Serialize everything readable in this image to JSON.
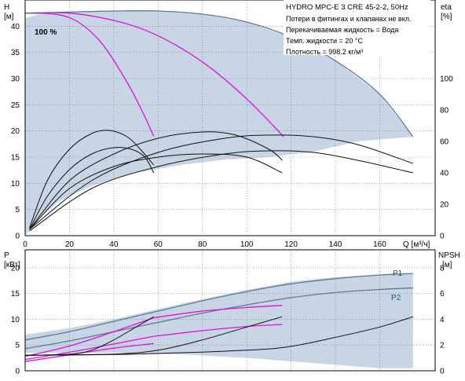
{
  "colors": {
    "envelope_fill": "#c8d5e4",
    "envelope_edge": "#5c7a9a",
    "curve_dark": "#111111",
    "curve_magenta": "#e010e0",
    "grid": "#777777",
    "axis": "#000000"
  },
  "chart_data": [
    {
      "type": "line",
      "title": "HYDRO MPC-E 3 CRE 45-2-2, 50Hz",
      "info_lines": [
        "Потери в фитингах и клапанах не вкл.",
        "Перекачиваемая жидкость = Вода",
        "Темп. жидкости = 20 °C",
        "Плотность = 998.2 кг/м³"
      ],
      "annotation": "100 %",
      "xlabel": "Q [м³/ч]",
      "ylabel_left": "H",
      "ylabel_left_unit": "[м]",
      "ylabel_right": "eta",
      "ylabel_right_unit": "[%]",
      "xlim": [
        0,
        185
      ],
      "ylim": [
        0,
        45
      ],
      "y2lim": [
        0,
        150
      ],
      "x_ticks": [
        0,
        20,
        40,
        60,
        80,
        100,
        120,
        140,
        160
      ],
      "y_ticks": [
        0,
        5,
        10,
        15,
        20,
        25,
        30,
        35,
        40
      ],
      "y2_ticks": [
        0,
        20,
        40,
        60,
        80,
        100
      ],
      "grid": true,
      "envelope": {
        "x": [
          0,
          5,
          20,
          40,
          60,
          80,
          100,
          120,
          140,
          160,
          175,
          150,
          130,
          110,
          90,
          70,
          50,
          30,
          15,
          5,
          2,
          0
        ],
        "y": [
          41.5,
          42.1,
          42.7,
          42.9,
          42.9,
          42.3,
          40.8,
          37.9,
          33.4,
          27.0,
          18.9,
          18.0,
          16.0,
          15.0,
          14.5,
          13.5,
          12.0,
          9.5,
          6.5,
          3.0,
          1.0,
          0
        ]
      },
      "series": [
        {
          "name": "head_1",
          "axis": "left",
          "color_key": "curve_magenta",
          "x": [
            0,
            15,
            25,
            35,
            45,
            52,
            58
          ],
          "y": [
            42.5,
            42.2,
            40.5,
            36.5,
            30.0,
            24.5,
            19.0
          ]
        },
        {
          "name": "head_2",
          "axis": "left",
          "color_key": "curve_magenta",
          "x": [
            0,
            20,
            40,
            55,
            70,
            85,
            100,
            112,
            116.5
          ],
          "y": [
            42.5,
            42.5,
            41.1,
            39.1,
            35.9,
            31.6,
            26.1,
            21.0,
            18.9
          ]
        },
        {
          "name": "head_3",
          "axis": "left",
          "color_key": "envelope_edge",
          "x": [
            0,
            20,
            40,
            60,
            80,
            100,
            120,
            140,
            160,
            175
          ],
          "y": [
            42.5,
            42.7,
            42.9,
            42.9,
            42.3,
            40.8,
            37.9,
            33.4,
            27.0,
            18.9
          ]
        },
        {
          "name": "eta_1",
          "axis": "right",
          "color_key": "curve_dark",
          "x": [
            2,
            10,
            20,
            30,
            38,
            46,
            52,
            58
          ],
          "y": [
            5,
            35,
            55,
            65,
            67,
            63,
            55,
            45
          ]
        },
        {
          "name": "eta_2",
          "axis": "right",
          "color_key": "curve_dark",
          "x": [
            2,
            10,
            20,
            30,
            40,
            48,
            54,
            58
          ],
          "y": [
            4,
            25,
            42,
            52,
            56,
            55,
            50,
            40
          ]
        },
        {
          "name": "eta_3",
          "axis": "right",
          "color_key": "curve_dark",
          "x": [
            2,
            20,
            40,
            60,
            80,
            95,
            110,
            116
          ],
          "y": [
            4,
            35,
            52,
            62,
            66,
            64,
            55,
            48
          ]
        },
        {
          "name": "eta_4",
          "axis": "right",
          "color_key": "curve_dark",
          "x": [
            2,
            20,
            40,
            60,
            80,
            100,
            116
          ],
          "y": [
            4,
            30,
            44,
            50,
            52,
            50,
            40
          ]
        },
        {
          "name": "eta_5",
          "axis": "right",
          "color_key": "curve_dark",
          "x": [
            2,
            30,
            60,
            90,
            110,
            130,
            150,
            175
          ],
          "y": [
            4,
            35,
            53,
            62,
            64,
            63,
            58,
            46
          ]
        },
        {
          "name": "eta_6",
          "axis": "right",
          "color_key": "curve_dark",
          "x": [
            2,
            30,
            60,
            90,
            110,
            130,
            150,
            175
          ],
          "y": [
            3,
            30,
            44,
            52,
            54,
            53,
            48,
            40
          ]
        }
      ]
    },
    {
      "type": "line",
      "xlabel": "",
      "ylabel_left": "P",
      "ylabel_left_unit": "[кВт]",
      "ylabel_right": "NPSH",
      "ylabel_right_unit": "[м]",
      "xlim": [
        0,
        185
      ],
      "ylim": [
        0,
        23.5
      ],
      "y2lim": [
        0,
        9.4
      ],
      "y_ticks": [
        0,
        5,
        10,
        15,
        20
      ],
      "y2_ticks": [
        0,
        2,
        4,
        6,
        8
      ],
      "grid": true,
      "envelope": {
        "x": [
          0,
          20,
          40,
          60,
          80,
          100,
          120,
          140,
          160,
          175,
          175,
          160,
          130,
          100,
          70,
          40,
          15,
          0
        ],
        "y": [
          7.0,
          8.3,
          10.0,
          12.0,
          13.9,
          15.7,
          17.3,
          18.2,
          18.7,
          19.0,
          0.5,
          0.5,
          1.5,
          2.5,
          3.2,
          3.5,
          3.5,
          3.5
        ]
      },
      "labels": [
        "P1",
        "P2"
      ],
      "series": [
        {
          "name": "P1",
          "axis": "left",
          "color_key": "envelope_edge",
          "x": [
            0,
            20,
            40,
            60,
            80,
            100,
            120,
            140,
            160,
            175
          ],
          "y": [
            6.0,
            7.6,
            9.6,
            11.6,
            13.6,
            15.4,
            16.9,
            17.9,
            18.6,
            18.9
          ]
        },
        {
          "name": "P2",
          "axis": "left",
          "color_key": "envelope_edge",
          "x": [
            0,
            20,
            40,
            60,
            80,
            100,
            120,
            140,
            160,
            175
          ],
          "y": [
            4.3,
            5.8,
            7.6,
            9.4,
            11.2,
            12.8,
            14.2,
            15.2,
            15.8,
            16.1
          ]
        },
        {
          "name": "Pm_1",
          "axis": "left",
          "color_key": "curve_magenta",
          "x": [
            0,
            20,
            40,
            58
          ],
          "y": [
            2.8,
            4.8,
            7.6,
            10.3
          ]
        },
        {
          "name": "Pm_2",
          "axis": "left",
          "color_key": "curve_magenta",
          "x": [
            0,
            20,
            40,
            58
          ],
          "y": [
            2.2,
            3.6,
            5.2,
            6.7
          ]
        },
        {
          "name": "Pm_3",
          "axis": "left",
          "color_key": "curve_magenta",
          "x": [
            0,
            20,
            40,
            58
          ],
          "y": [
            1.8,
            3.1,
            4.4,
            5.3
          ]
        },
        {
          "name": "Pm_4",
          "axis": "left",
          "color_key": "curve_magenta",
          "x": [
            58,
            80,
            100,
            116
          ],
          "y": [
            10.3,
            11.6,
            12.3,
            12.7
          ]
        },
        {
          "name": "Pm_5",
          "axis": "left",
          "color_key": "curve_magenta",
          "x": [
            58,
            80,
            100,
            116
          ],
          "y": [
            6.7,
            7.8,
            8.6,
            9.0
          ]
        },
        {
          "name": "npsh_1",
          "axis": "right",
          "color_key": "curve_dark",
          "x": [
            0,
            20,
            30,
            40,
            50,
            58
          ],
          "y": [
            1.2,
            1.3,
            1.6,
            2.4,
            3.4,
            4.2
          ]
        },
        {
          "name": "npsh_2",
          "axis": "right",
          "color_key": "curve_dark",
          "x": [
            0,
            40,
            60,
            80,
            100,
            116
          ],
          "y": [
            1.2,
            1.3,
            1.6,
            2.4,
            3.4,
            4.2
          ]
        },
        {
          "name": "npsh_3",
          "axis": "right",
          "color_key": "curve_dark",
          "x": [
            0,
            50,
            100,
            120,
            140,
            160,
            175
          ],
          "y": [
            1.2,
            1.3,
            1.6,
            1.9,
            2.6,
            3.4,
            4.2
          ]
        }
      ]
    }
  ]
}
